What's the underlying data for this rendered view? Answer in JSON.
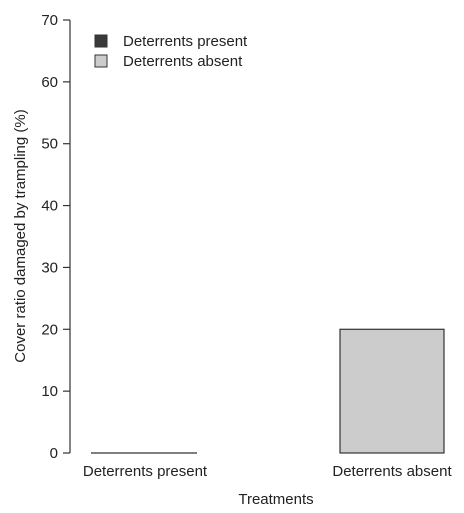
{
  "chart_data": {
    "type": "bar",
    "title": "",
    "xlabel": "Treatments",
    "ylabel": "Cover ratio damaged by trampling (%)",
    "ylim": [
      0,
      70
    ],
    "yticks": [
      "0",
      "10",
      "20",
      "30",
      "40",
      "50",
      "60",
      "70"
    ],
    "categories": [
      "Deterrents present",
      "Deterrents absent"
    ],
    "values": [
      0,
      20
    ],
    "colors": [
      "#3a3a3a",
      "#cccccc"
    ],
    "grid": false,
    "legend_position": "top-left",
    "legend": [
      {
        "label": "Deterrents present",
        "color": "#3a3a3a"
      },
      {
        "label": "Deterrents absent",
        "color": "#cccccc"
      }
    ]
  }
}
